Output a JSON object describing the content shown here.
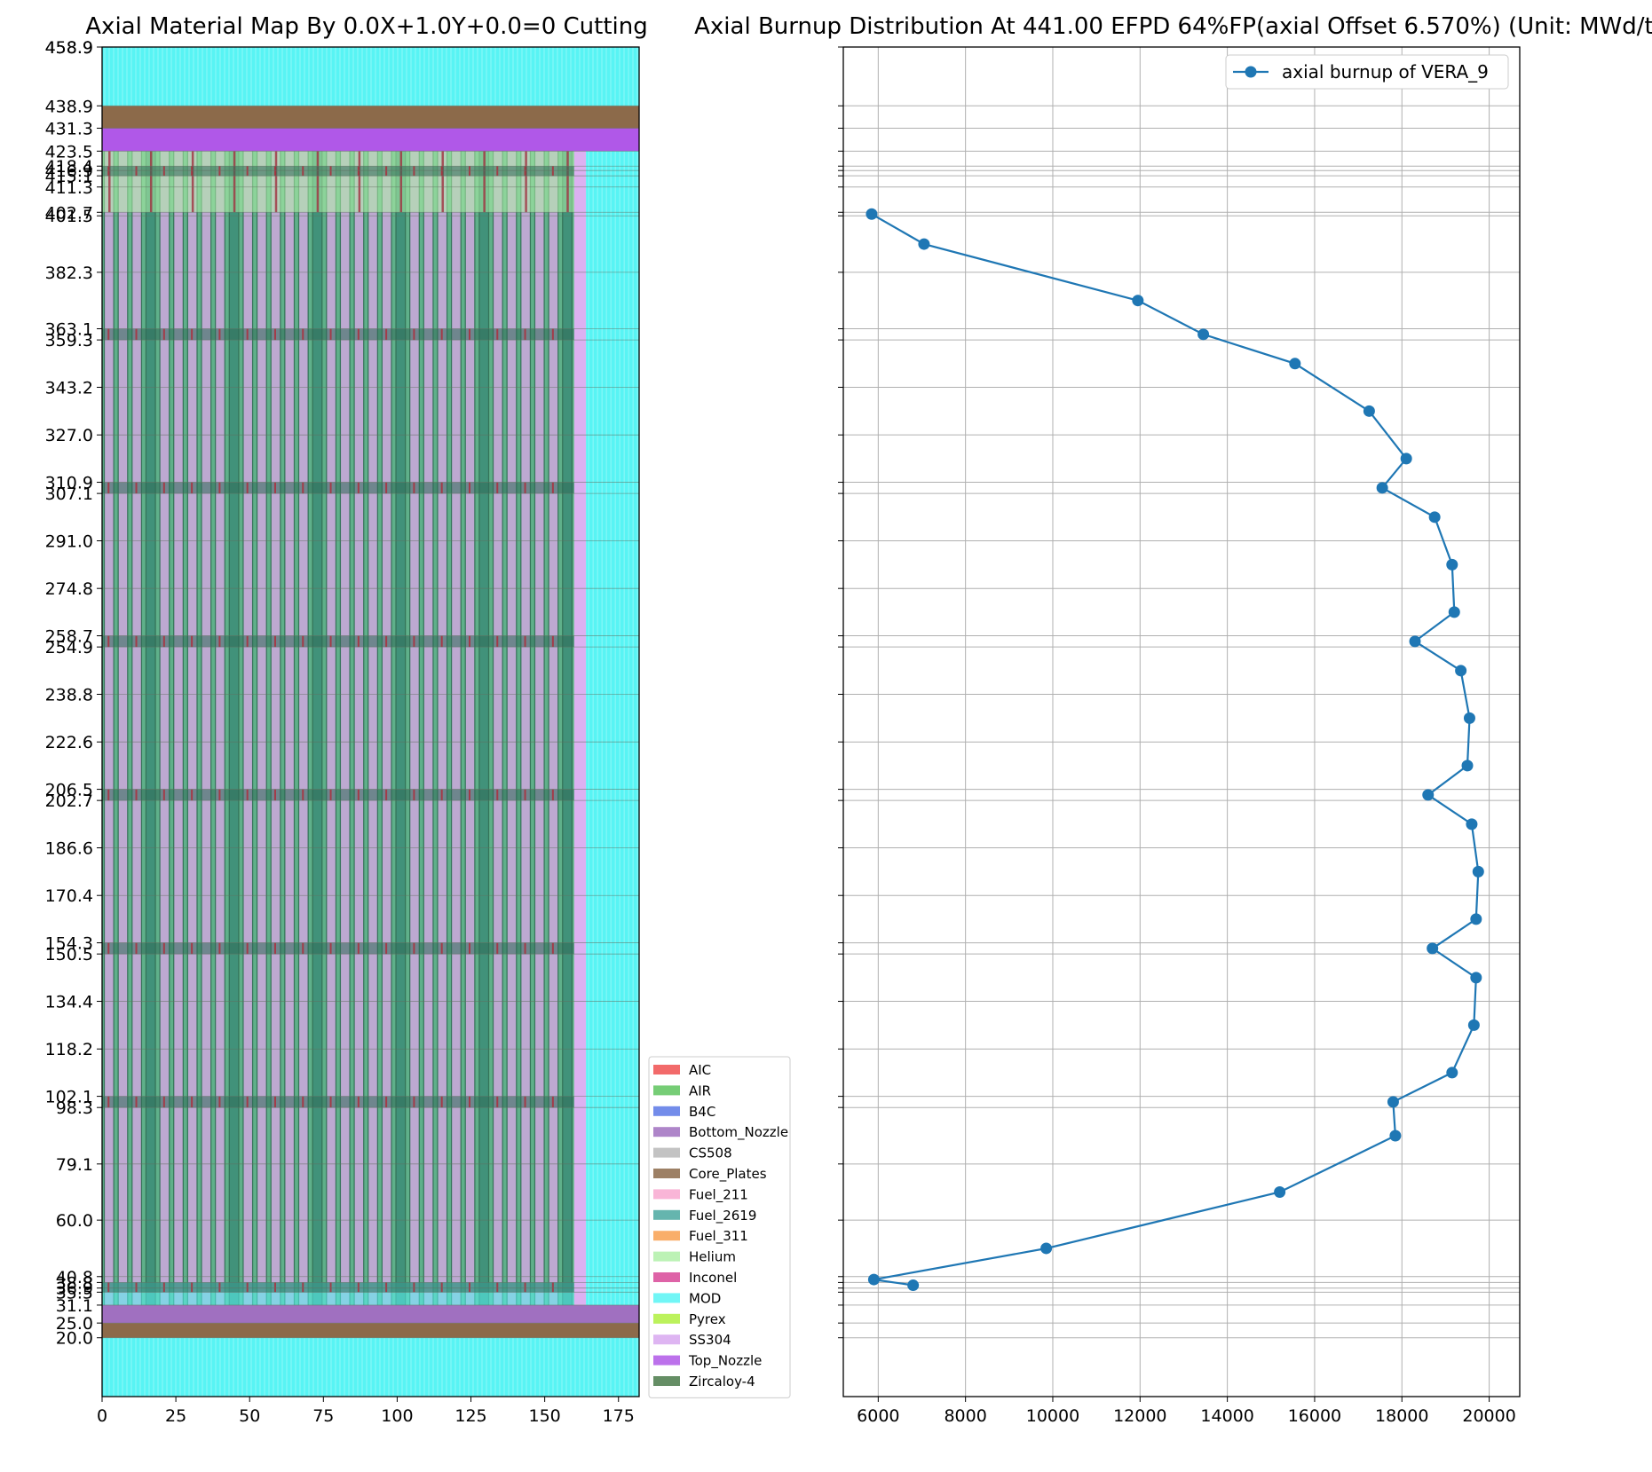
{
  "chart_data": [
    {
      "type": "heatmap",
      "title": "Axial Material Map By 0.0X+1.0Y+0.0=0 Cutting",
      "xlabel": "",
      "ylabel": "",
      "xlim": [
        0,
        182
      ],
      "ylim": [
        0,
        458.9
      ],
      "x_ticks": [
        0,
        25,
        50,
        75,
        100,
        125,
        150,
        175
      ],
      "y_ticks": [
        "20.0",
        "25.0",
        "31.1",
        "35.5",
        "36.9",
        "38.8",
        "40.8",
        "60.0",
        "79.1",
        "98.3",
        "102.1",
        "118.2",
        "134.4",
        "150.5",
        "154.3",
        "170.4",
        "186.6",
        "202.7",
        "206.5",
        "222.6",
        "238.8",
        "254.9",
        "258.7",
        "274.8",
        "291.0",
        "307.1",
        "310.9",
        "327.0",
        "343.2",
        "359.3",
        "363.1",
        "382.3",
        "401.5",
        "402.7",
        "411.3",
        "415.1",
        "416.9",
        "418.4",
        "423.5",
        "431.3",
        "438.9",
        "458.9"
      ],
      "legend": {
        "placement": "outside-lower-right",
        "entries": [
          {
            "name": "AIC",
            "color": "#f05050"
          },
          {
            "name": "AIR",
            "color": "#5ec45e"
          },
          {
            "name": "B4C",
            "color": "#5a78e6"
          },
          {
            "name": "Bottom_Nozzle",
            "color": "#a070c0"
          },
          {
            "name": "CS508",
            "color": "#b8b8b8"
          },
          {
            "name": "Core_Plates",
            "color": "#8c6a4a"
          },
          {
            "name": "Fuel_211",
            "color": "#f8a8d0"
          },
          {
            "name": "Fuel_2619",
            "color": "#4aa8a0"
          },
          {
            "name": "Fuel_311",
            "color": "#f8a050"
          },
          {
            "name": "Helium",
            "color": "#b0f0a8"
          },
          {
            "name": "Inconel",
            "color": "#d84898"
          },
          {
            "name": "MOD",
            "color": "#58f4f4"
          },
          {
            "name": "Pyrex",
            "color": "#b0f040"
          },
          {
            "name": "SS304",
            "color": "#d8a8f0"
          },
          {
            "name": "Top_Nozzle",
            "color": "#b058e8"
          },
          {
            "name": "Zircaloy-4",
            "color": "#4a7a4a"
          }
        ]
      },
      "regions": [
        {
          "material": "MOD",
          "x": [
            0,
            182
          ],
          "z": [
            0,
            20.0
          ]
        },
        {
          "material": "Core_Plates",
          "x": [
            0,
            182
          ],
          "z": [
            20.0,
            25.0
          ]
        },
        {
          "material": "Bottom_Nozzle",
          "x": [
            0,
            182
          ],
          "z": [
            25.0,
            31.1
          ]
        },
        {
          "material": "Fuel_rods",
          "x": [
            0,
            160
          ],
          "z": [
            31.1,
            423.5
          ]
        },
        {
          "material": "SS304",
          "x": [
            160,
            164
          ],
          "z": [
            31.1,
            423.5
          ]
        },
        {
          "material": "MOD",
          "x": [
            164,
            182
          ],
          "z": [
            31.1,
            423.5
          ]
        },
        {
          "material": "Top_Nozzle",
          "x": [
            0,
            182
          ],
          "z": [
            423.5,
            431.3
          ]
        },
        {
          "material": "Core_Plates",
          "x": [
            0,
            182
          ],
          "z": [
            431.3,
            438.9
          ]
        },
        {
          "material": "MOD",
          "x": [
            0,
            182
          ],
          "z": [
            438.9,
            458.9
          ]
        }
      ]
    },
    {
      "type": "line",
      "title": "Axial Burnup Distribution At 441.00 EFPD 64%FP(axial Offset 6.570%) (Unit: MWd/tU)",
      "xlabel": "",
      "ylabel": "",
      "xlim": [
        5200,
        20700
      ],
      "ylim": [
        0,
        458.9
      ],
      "x_ticks": [
        6000,
        8000,
        10000,
        12000,
        14000,
        16000,
        18000,
        20000
      ],
      "grid": true,
      "legend": {
        "placement": "top-right"
      },
      "series": [
        {
          "name": "axial burnup of VERA_9",
          "color": "#1f77b4",
          "x": [
            6800,
            5900,
            9850,
            15200,
            17850,
            17800,
            19150,
            19650,
            19700,
            18700,
            19700,
            19750,
            19600,
            18600,
            19500,
            19550,
            19350,
            18300,
            19200,
            19150,
            18750,
            17550,
            18100,
            17250,
            15550,
            13450,
            11950,
            7050,
            5850
          ],
          "y": [
            37.85,
            39.8,
            50.4,
            69.55,
            88.7,
            100.2,
            110.15,
            126.3,
            142.45,
            152.4,
            162.35,
            178.5,
            194.65,
            204.6,
            214.55,
            230.7,
            246.85,
            256.8,
            266.75,
            282.9,
            299.05,
            309.0,
            318.95,
            335.1,
            351.25,
            361.2,
            372.7,
            391.9,
            402.1
          ]
        }
      ]
    }
  ]
}
